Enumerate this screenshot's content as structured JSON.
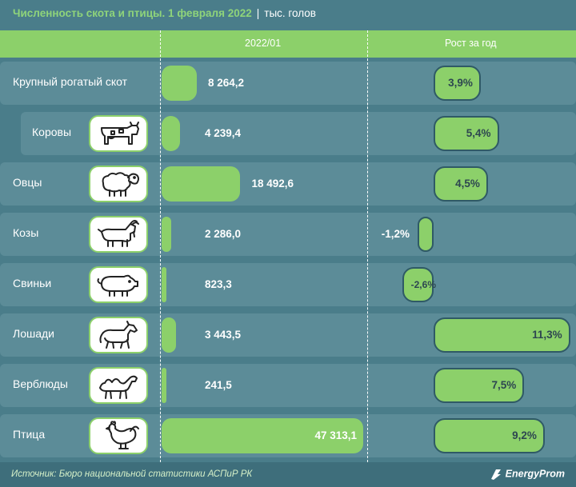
{
  "header": {
    "title": "Численность скота и птицы. 1 февраля 2022",
    "unit": "тыс. голов",
    "col_value": "2022/01",
    "col_growth": "Рост за год"
  },
  "chart_data": {
    "type": "bar",
    "categories": [
      "Крупный рогатый скот",
      "Коровы",
      "Овцы",
      "Козы",
      "Свиньи",
      "Лошади",
      "Верблюды",
      "Птица"
    ],
    "series": [
      {
        "name": "2022/01",
        "values": [
          8264.2,
          4239.4,
          18492.6,
          2286.0,
          823.3,
          3443.5,
          241.5,
          47313.1
        ],
        "labels": [
          "8 264,2",
          "4 239,4",
          "18 492,6",
          "2 286,0",
          "823,3",
          "3 443,5",
          "241,5",
          "47 313,1"
        ]
      },
      {
        "name": "Рост за год",
        "values": [
          3.9,
          5.4,
          4.5,
          -1.2,
          -2.6,
          11.3,
          7.5,
          9.2
        ],
        "labels": [
          "3,9%",
          "5,4%",
          "4,5%",
          "-1,2%",
          "-2,6%",
          "11,3%",
          "7,5%",
          "9,2%"
        ]
      }
    ],
    "icons": [
      "",
      "cow-icon",
      "sheep-icon",
      "goat-icon",
      "pig-icon",
      "horse-icon",
      "camel-icon",
      "chicken-icon"
    ],
    "indented": [
      false,
      true,
      false,
      false,
      false,
      false,
      false,
      false
    ],
    "bar_color": "#8cd06a"
  },
  "footer": {
    "source": "Источник: Бюро национальной статистики АСПиР РК",
    "logo": "EnergyProm"
  }
}
